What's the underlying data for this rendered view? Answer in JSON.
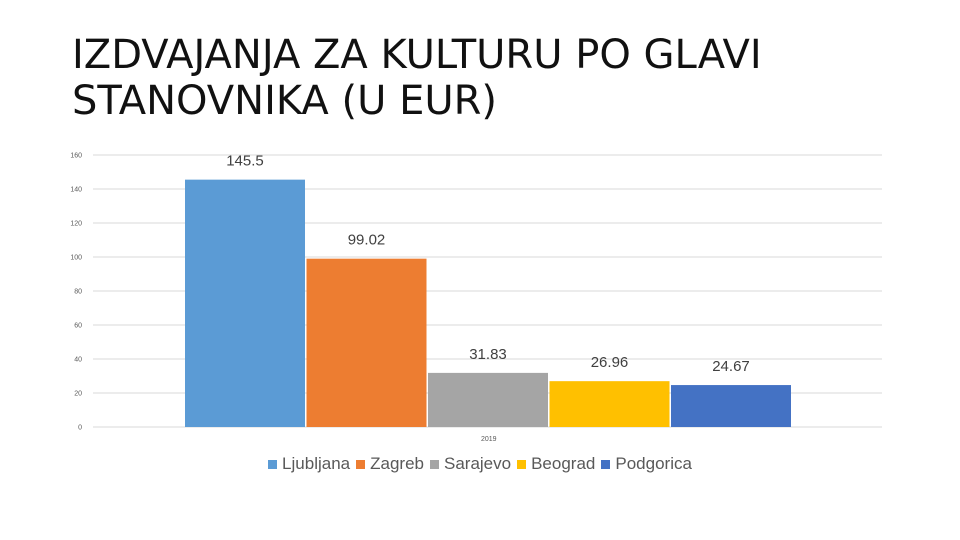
{
  "title": "IZDVAJANJA ZA KULTURU PO GLAVI STANOVNIKA (U EUR)",
  "chart_data": {
    "type": "bar",
    "title": "IZDVAJANJA ZA KULTURU PO GLAVI STANOVNIKA (U EUR)",
    "categories": [
      "2019"
    ],
    "series": [
      {
        "name": "Ljubljana",
        "values": [
          145.5
        ],
        "label": "145.5",
        "color": "#5B9BD5"
      },
      {
        "name": "Zagreb",
        "values": [
          99.02
        ],
        "label": "99.02",
        "color": "#ED7D31"
      },
      {
        "name": "Sarajevo",
        "values": [
          31.83
        ],
        "label": "31.83",
        "color": "#A5A5A5"
      },
      {
        "name": "Beograd",
        "values": [
          26.96
        ],
        "label": "26.96",
        "color": "#FFC000"
      },
      {
        "name": "Podgorica",
        "values": [
          24.67
        ],
        "label": "24.67",
        "color": "#4472C4"
      }
    ],
    "ylim": [
      0,
      160
    ],
    "yticks": [
      "0",
      "20",
      "40",
      "60",
      "80",
      "100",
      "120",
      "140",
      "160"
    ],
    "xlabel": "",
    "ylabel": "",
    "grid": true,
    "legend": "bottom"
  }
}
